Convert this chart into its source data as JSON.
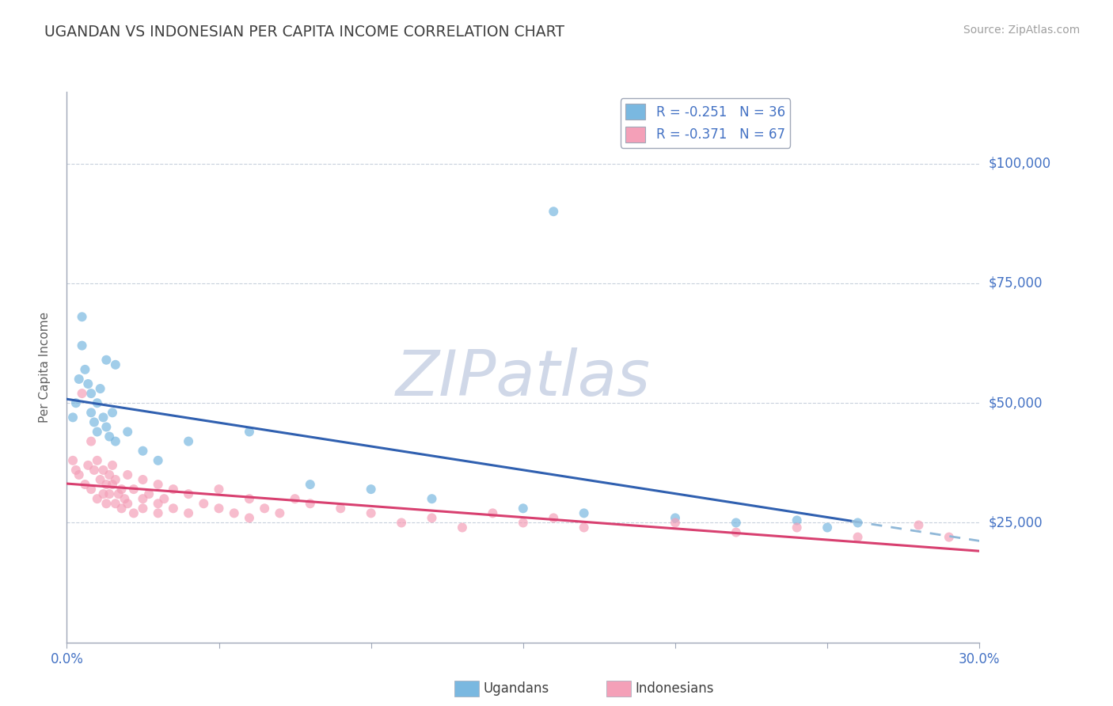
{
  "title": "UGANDAN VS INDONESIAN PER CAPITA INCOME CORRELATION CHART",
  "source_text": "Source: ZipAtlas.com",
  "ylabel": "Per Capita Income",
  "xlim": [
    0.0,
    0.3
  ],
  "ylim": [
    0,
    115000
  ],
  "yticks": [
    0,
    25000,
    50000,
    75000,
    100000
  ],
  "ytick_labels": [
    "",
    "$25,000",
    "$50,000",
    "$75,000",
    "$100,000"
  ],
  "xticks": [
    0.0,
    0.05,
    0.1,
    0.15,
    0.2,
    0.25,
    0.3
  ],
  "xtick_labels": [
    "0.0%",
    "",
    "",
    "",
    "",
    "",
    "30.0%"
  ],
  "legend_label_1": "R = -0.251   N = 36",
  "legend_label_2": "R = -0.371   N = 67",
  "watermark": "ZIPatlas",
  "watermark_color": "#d0d8e8",
  "background_color": "#ffffff",
  "grid_color": "#c8d0dc",
  "axis_color": "#a0a8b8",
  "title_color": "#404040",
  "ylabel_color": "#606060",
  "ytick_color": "#4472c4",
  "xtick_color": "#4472c4",
  "source_color": "#a0a0a0",
  "ugandan_color": "#7ab8e0",
  "indonesian_color": "#f4a0b8",
  "ugandan_trend_color": "#3060b0",
  "indonesian_trend_color": "#d84070",
  "ugandan_dashed_color": "#90b8d8",
  "ugandans_data": [
    [
      0.002,
      47000
    ],
    [
      0.003,
      50000
    ],
    [
      0.004,
      55000
    ],
    [
      0.005,
      62000
    ],
    [
      0.005,
      68000
    ],
    [
      0.006,
      57000
    ],
    [
      0.007,
      54000
    ],
    [
      0.008,
      48000
    ],
    [
      0.008,
      52000
    ],
    [
      0.009,
      46000
    ],
    [
      0.01,
      50000
    ],
    [
      0.01,
      44000
    ],
    [
      0.011,
      53000
    ],
    [
      0.012,
      47000
    ],
    [
      0.013,
      45000
    ],
    [
      0.013,
      59000
    ],
    [
      0.014,
      43000
    ],
    [
      0.015,
      48000
    ],
    [
      0.016,
      42000
    ],
    [
      0.016,
      58000
    ],
    [
      0.02,
      44000
    ],
    [
      0.025,
      40000
    ],
    [
      0.03,
      38000
    ],
    [
      0.04,
      42000
    ],
    [
      0.06,
      44000
    ],
    [
      0.08,
      33000
    ],
    [
      0.1,
      32000
    ],
    [
      0.12,
      30000
    ],
    [
      0.15,
      28000
    ],
    [
      0.17,
      27000
    ],
    [
      0.2,
      26000
    ],
    [
      0.22,
      25000
    ],
    [
      0.24,
      25500
    ],
    [
      0.25,
      24000
    ],
    [
      0.26,
      25000
    ],
    [
      0.16,
      90000
    ]
  ],
  "indonesians_data": [
    [
      0.002,
      38000
    ],
    [
      0.003,
      36000
    ],
    [
      0.004,
      35000
    ],
    [
      0.005,
      52000
    ],
    [
      0.006,
      33000
    ],
    [
      0.007,
      37000
    ],
    [
      0.008,
      32000
    ],
    [
      0.008,
      42000
    ],
    [
      0.009,
      36000
    ],
    [
      0.01,
      30000
    ],
    [
      0.01,
      38000
    ],
    [
      0.011,
      34000
    ],
    [
      0.012,
      31000
    ],
    [
      0.012,
      36000
    ],
    [
      0.013,
      33000
    ],
    [
      0.013,
      29000
    ],
    [
      0.014,
      35000
    ],
    [
      0.014,
      31000
    ],
    [
      0.015,
      33000
    ],
    [
      0.015,
      37000
    ],
    [
      0.016,
      29000
    ],
    [
      0.016,
      34000
    ],
    [
      0.017,
      31000
    ],
    [
      0.018,
      28000
    ],
    [
      0.018,
      32000
    ],
    [
      0.019,
      30000
    ],
    [
      0.02,
      35000
    ],
    [
      0.02,
      29000
    ],
    [
      0.022,
      32000
    ],
    [
      0.022,
      27000
    ],
    [
      0.025,
      30000
    ],
    [
      0.025,
      34000
    ],
    [
      0.025,
      28000
    ],
    [
      0.027,
      31000
    ],
    [
      0.03,
      29000
    ],
    [
      0.03,
      33000
    ],
    [
      0.03,
      27000
    ],
    [
      0.032,
      30000
    ],
    [
      0.035,
      28000
    ],
    [
      0.035,
      32000
    ],
    [
      0.04,
      31000
    ],
    [
      0.04,
      27000
    ],
    [
      0.045,
      29000
    ],
    [
      0.05,
      28000
    ],
    [
      0.05,
      32000
    ],
    [
      0.055,
      27000
    ],
    [
      0.06,
      30000
    ],
    [
      0.06,
      26000
    ],
    [
      0.065,
      28000
    ],
    [
      0.07,
      27000
    ],
    [
      0.075,
      30000
    ],
    [
      0.08,
      29000
    ],
    [
      0.09,
      28000
    ],
    [
      0.1,
      27000
    ],
    [
      0.11,
      25000
    ],
    [
      0.12,
      26000
    ],
    [
      0.13,
      24000
    ],
    [
      0.14,
      27000
    ],
    [
      0.15,
      25000
    ],
    [
      0.16,
      26000
    ],
    [
      0.17,
      24000
    ],
    [
      0.2,
      25000
    ],
    [
      0.22,
      23000
    ],
    [
      0.24,
      24000
    ],
    [
      0.26,
      22000
    ],
    [
      0.28,
      24500
    ],
    [
      0.29,
      22000
    ]
  ]
}
